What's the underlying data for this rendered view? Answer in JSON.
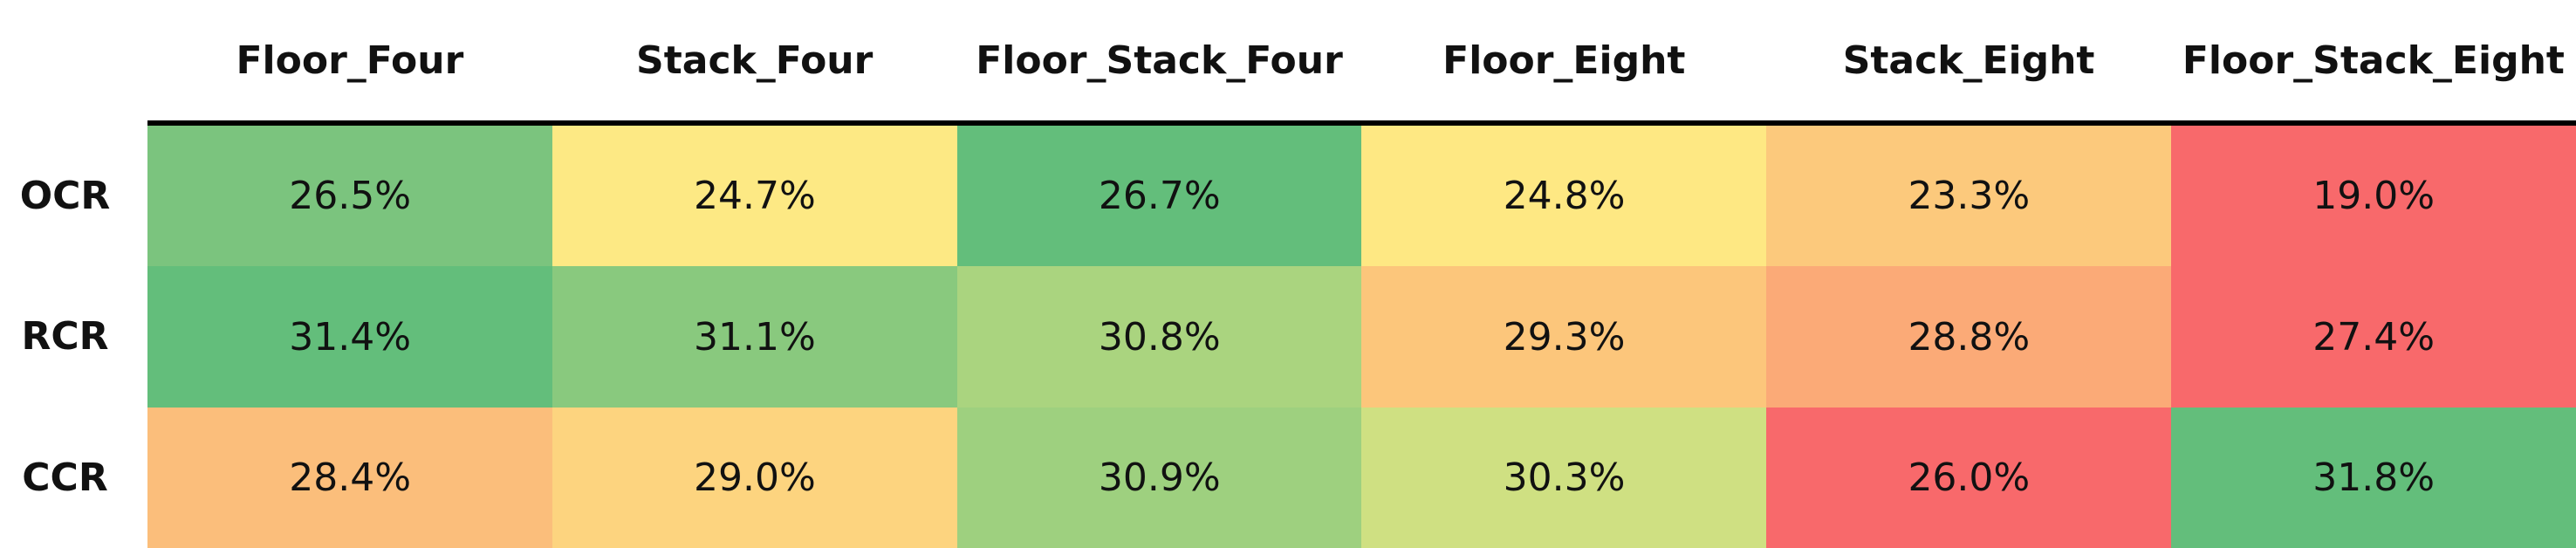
{
  "table": {
    "columns": [
      "Floor_Four",
      "Stack_Four",
      "Floor_Stack_Four",
      "Floor_Eight",
      "Stack_Eight",
      "Floor_Stack_Eight"
    ],
    "rows": [
      {
        "label": "OCR",
        "cells": [
          "26.5%",
          "24.7%",
          "26.7%",
          "24.8%",
          "23.3%",
          "19.0%"
        ],
        "colors": [
          "#7bc47e",
          "#fde984",
          "#63be7b",
          "#fee883",
          "#fcc97c",
          "#f8696b"
        ]
      },
      {
        "label": "RCR",
        "cells": [
          "31.4%",
          "31.1%",
          "30.8%",
          "29.3%",
          "28.8%",
          "27.4%"
        ],
        "colors": [
          "#63be7b",
          "#89c97e",
          "#aad47f",
          "#fcc67b",
          "#fbaa77",
          "#f8696b"
        ]
      },
      {
        "label": "CCR",
        "cells": [
          "28.4%",
          "29.0%",
          "30.9%",
          "30.3%",
          "26.0%",
          "31.8%"
        ],
        "colors": [
          "#fbbe7b",
          "#fdd47f",
          "#9ed07f",
          "#cfe082",
          "#f8696b",
          "#63be7b"
        ]
      }
    ]
  }
}
